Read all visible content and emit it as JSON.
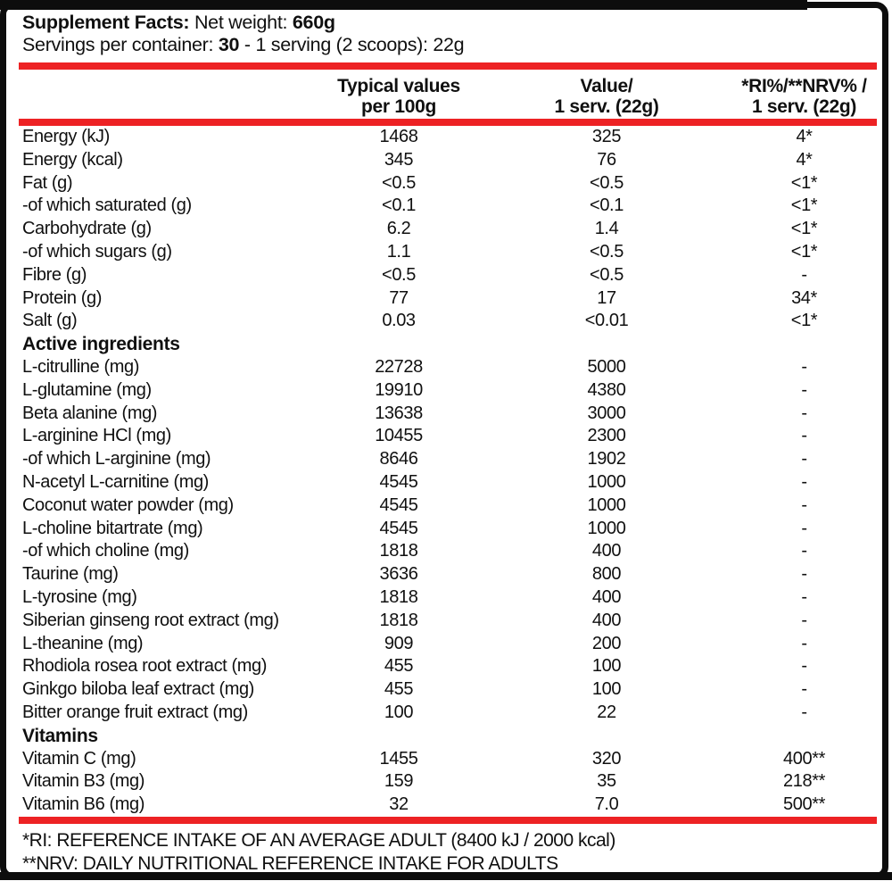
{
  "colors": {
    "accent_red": "#ed2224",
    "border_black": "#0d0d0d"
  },
  "header": {
    "title": "Supplement Facts:",
    "net_weight_label": "Net weight:",
    "net_weight_value": "660g",
    "servings_label": "Servings per container:",
    "servings_count": "30",
    "serving_detail": "- 1 serving (2 scoops): 22g"
  },
  "table": {
    "headers": {
      "col2": "Typical values\nper 100g",
      "col3": "Value/\n1 serv. (22g)",
      "col4": "*RI%/**NRV% /\n1 serv. (22g)"
    },
    "sections": [
      {
        "heading": "",
        "rows": [
          {
            "label": "Energy (kJ)",
            "per100g": "1468",
            "per_serving": "325",
            "ri_nrv": "4*"
          },
          {
            "label": "Energy (kcal)",
            "per100g": "345",
            "per_serving": "76",
            "ri_nrv": "4*"
          },
          {
            "label": "Fat (g)",
            "per100g": "<0.5",
            "per_serving": "<0.5",
            "ri_nrv": "<1*"
          },
          {
            "label": "-of which saturated (g)",
            "per100g": "<0.1",
            "per_serving": "<0.1",
            "ri_nrv": "<1*"
          },
          {
            "label": "Carbohydrate (g)",
            "per100g": "6.2",
            "per_serving": "1.4",
            "ri_nrv": "<1*"
          },
          {
            "label": "-of which sugars (g)",
            "per100g": "1.1",
            "per_serving": "<0.5",
            "ri_nrv": "<1*"
          },
          {
            "label": "Fibre (g)",
            "per100g": "<0.5",
            "per_serving": "<0.5",
            "ri_nrv": "-"
          },
          {
            "label": "Protein (g)",
            "per100g": "77",
            "per_serving": "17",
            "ri_nrv": "34*"
          },
          {
            "label": "Salt (g)",
            "per100g": "0.03",
            "per_serving": "<0.01",
            "ri_nrv": "<1*"
          }
        ]
      },
      {
        "heading": "Active ingredients",
        "rows": [
          {
            "label": "L-citrulline (mg)",
            "per100g": "22728",
            "per_serving": "5000",
            "ri_nrv": "-"
          },
          {
            "label": "L-glutamine (mg)",
            "per100g": "19910",
            "per_serving": "4380",
            "ri_nrv": "-"
          },
          {
            "label": "Beta alanine (mg)",
            "per100g": "13638",
            "per_serving": "3000",
            "ri_nrv": "-"
          },
          {
            "label": "L-arginine HCl (mg)",
            "per100g": "10455",
            "per_serving": "2300",
            "ri_nrv": "-"
          },
          {
            "label": "-of which L-arginine (mg)",
            "per100g": "8646",
            "per_serving": "1902",
            "ri_nrv": "-"
          },
          {
            "label": "N-acetyl L-carnitine (mg)",
            "per100g": "4545",
            "per_serving": "1000",
            "ri_nrv": "-"
          },
          {
            "label": "Coconut water powder (mg)",
            "per100g": "4545",
            "per_serving": "1000",
            "ri_nrv": "-"
          },
          {
            "label": "L-choline bitartrate (mg)",
            "per100g": "4545",
            "per_serving": "1000",
            "ri_nrv": "-"
          },
          {
            "label": "-of which choline (mg)",
            "per100g": "1818",
            "per_serving": "400",
            "ri_nrv": "-"
          },
          {
            "label": "Taurine (mg)",
            "per100g": "3636",
            "per_serving": "800",
            "ri_nrv": "-"
          },
          {
            "label": "L-tyrosine (mg)",
            "per100g": "1818",
            "per_serving": "400",
            "ri_nrv": "-"
          },
          {
            "label": "Siberian ginseng root extract (mg)",
            "per100g": "1818",
            "per_serving": "400",
            "ri_nrv": "-"
          },
          {
            "label": "L-theanine (mg)",
            "per100g": "909",
            "per_serving": "200",
            "ri_nrv": "-"
          },
          {
            "label": "Rhodiola rosea root extract (mg)",
            "per100g": "455",
            "per_serving": "100",
            "ri_nrv": "-"
          },
          {
            "label": "Ginkgo biloba leaf extract (mg)",
            "per100g": "455",
            "per_serving": "100",
            "ri_nrv": "-"
          },
          {
            "label": "Bitter orange fruit extract (mg)",
            "per100g": "100",
            "per_serving": "22",
            "ri_nrv": "-"
          }
        ]
      },
      {
        "heading": "Vitamins",
        "rows": [
          {
            "label": "Vitamin C (mg)",
            "per100g": "1455",
            "per_serving": "320",
            "ri_nrv": "400**"
          },
          {
            "label": "Vitamin B3 (mg)",
            "per100g": "159",
            "per_serving": "35",
            "ri_nrv": "218**"
          },
          {
            "label": "Vitamin B6 (mg)",
            "per100g": "32",
            "per_serving": "7.0",
            "ri_nrv": "500**"
          }
        ]
      }
    ]
  },
  "footnotes": [
    "*RI: REFERENCE INTAKE OF AN AVERAGE ADULT (8400 kJ / 2000 kcal)",
    "**NRV: DAILY NUTRITIONAL REFERENCE INTAKE FOR ADULTS"
  ]
}
